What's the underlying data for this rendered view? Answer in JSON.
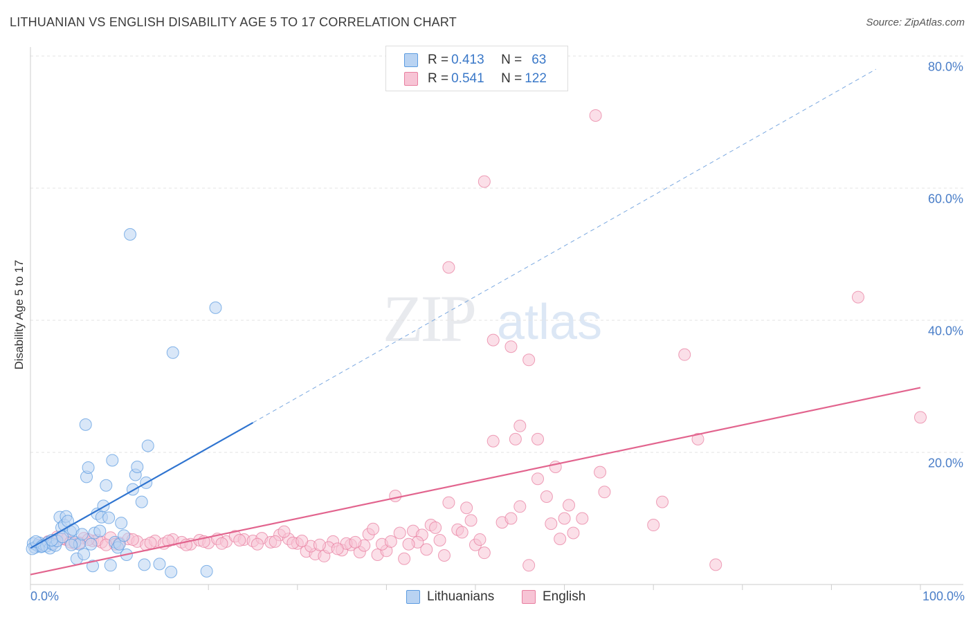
{
  "header": {
    "title": "LITHUANIAN VS ENGLISH DISABILITY AGE 5 TO 17 CORRELATION CHART",
    "source": "Source: ZipAtlas.com"
  },
  "watermark": {
    "zip": "ZIP",
    "atlas": "atlas"
  },
  "legend": {
    "rows": [
      {
        "r_label": "R = ",
        "r_value": "0.413",
        "n_label": "N = ",
        "n_value": "63",
        "color": "#5b9be0",
        "fill": "#b9d3f2"
      },
      {
        "r_label": "R = ",
        "r_value": "0.541",
        "n_label": "N = ",
        "n_value": "122",
        "color": "#e87fa0",
        "fill": "#f7c4d5"
      }
    ]
  },
  "bottom_legend": {
    "lithuanians": "Lithuanians",
    "english": "English"
  },
  "axis_text": {
    "ylabel": "Disability Age 5 to 17",
    "y_ticks": [
      "80.0%",
      "60.0%",
      "40.0%",
      "20.0%"
    ],
    "x_min": "0.0%",
    "x_max": "100.0%"
  },
  "chart_data": {
    "type": "scatter",
    "title": "LITHUANIAN VS ENGLISH DISABILITY AGE 5 TO 17 CORRELATION CHART",
    "xlabel": "",
    "ylabel": "Disability Age 5 to 17",
    "xlim": [
      0,
      100
    ],
    "ylim": [
      0,
      80
    ],
    "y_ticks": [
      20,
      40,
      60,
      80
    ],
    "grid": true,
    "legend_position": "top-center",
    "series": [
      {
        "name": "Lithuanians",
        "color": "#5b9be0",
        "fill": "#b9d3f2",
        "trend": {
          "x0": 0,
          "y0": 5.5,
          "x1": 25,
          "y1": 24.5,
          "dashed_to_x": 95,
          "dashed_to_y": 78
        },
        "points": [
          [
            0.3,
            6.2
          ],
          [
            0.5,
            5.6
          ],
          [
            0.8,
            5.9
          ],
          [
            1.0,
            6.3
          ],
          [
            1.2,
            5.7
          ],
          [
            1.5,
            6.0
          ],
          [
            1.8,
            5.8
          ],
          [
            2.0,
            6.4
          ],
          [
            2.2,
            5.5
          ],
          [
            2.5,
            6.1
          ],
          [
            2.8,
            5.9
          ],
          [
            3.0,
            6.6
          ],
          [
            3.3,
            10.2
          ],
          [
            3.5,
            8.6
          ],
          [
            3.8,
            9.0
          ],
          [
            4.0,
            10.3
          ],
          [
            4.2,
            9.6
          ],
          [
            4.5,
            8.0
          ],
          [
            4.8,
            8.3
          ],
          [
            5.0,
            6.4
          ],
          [
            5.2,
            3.9
          ],
          [
            5.5,
            6.1
          ],
          [
            5.8,
            7.6
          ],
          [
            6.0,
            4.6
          ],
          [
            6.2,
            24.2
          ],
          [
            6.3,
            16.3
          ],
          [
            6.5,
            17.7
          ],
          [
            6.8,
            6.1
          ],
          [
            7.0,
            2.8
          ],
          [
            7.2,
            7.8
          ],
          [
            7.5,
            10.7
          ],
          [
            7.8,
            8.1
          ],
          [
            8.0,
            10.2
          ],
          [
            8.2,
            11.9
          ],
          [
            8.5,
            15.0
          ],
          [
            8.8,
            10.1
          ],
          [
            9.0,
            2.9
          ],
          [
            9.2,
            18.8
          ],
          [
            9.5,
            6.4
          ],
          [
            9.8,
            5.6
          ],
          [
            10.0,
            6.1
          ],
          [
            10.2,
            9.3
          ],
          [
            10.5,
            7.4
          ],
          [
            10.8,
            4.5
          ],
          [
            11.2,
            53.0
          ],
          [
            11.5,
            14.4
          ],
          [
            11.8,
            16.6
          ],
          [
            12.0,
            17.8
          ],
          [
            12.5,
            12.5
          ],
          [
            12.8,
            3.0
          ],
          [
            13.0,
            15.4
          ],
          [
            13.2,
            21.0
          ],
          [
            14.5,
            3.1
          ],
          [
            15.8,
            1.9
          ],
          [
            16.0,
            35.1
          ],
          [
            19.8,
            2.0
          ],
          [
            20.8,
            41.9
          ],
          [
            0.2,
            5.4
          ],
          [
            0.6,
            6.5
          ],
          [
            1.3,
            5.8
          ],
          [
            2.4,
            6.7
          ],
          [
            3.6,
            7.2
          ],
          [
            4.6,
            6.0
          ]
        ]
      },
      {
        "name": "English",
        "color": "#e87fa0",
        "fill": "#f7c4d5",
        "trend": {
          "x0": 0,
          "y0": 1.5,
          "x1": 100,
          "y1": 29.8
        },
        "points": [
          [
            1.0,
            6.0
          ],
          [
            2.0,
            6.5
          ],
          [
            3.0,
            7.2
          ],
          [
            4.0,
            6.8
          ],
          [
            5.0,
            6.2
          ],
          [
            6.0,
            7.0
          ],
          [
            7.0,
            6.6
          ],
          [
            8.0,
            6.4
          ],
          [
            9.0,
            7.1
          ],
          [
            10.0,
            6.3
          ],
          [
            11.0,
            6.9
          ],
          [
            12.0,
            6.5
          ],
          [
            13.0,
            6.0
          ],
          [
            14.0,
            6.6
          ],
          [
            15.0,
            6.2
          ],
          [
            16.0,
            6.8
          ],
          [
            17.0,
            6.4
          ],
          [
            18.0,
            6.1
          ],
          [
            19.0,
            6.7
          ],
          [
            20.0,
            6.3
          ],
          [
            21.0,
            6.9
          ],
          [
            22.0,
            6.5
          ],
          [
            23.0,
            7.3
          ],
          [
            24.0,
            6.8
          ],
          [
            25.0,
            6.6
          ],
          [
            26.0,
            7.0
          ],
          [
            27.0,
            6.4
          ],
          [
            28.0,
            7.5
          ],
          [
            29.0,
            6.9
          ],
          [
            30.0,
            6.2
          ],
          [
            31.0,
            5.0
          ],
          [
            32.0,
            4.6
          ],
          [
            33.0,
            4.3
          ],
          [
            34.0,
            6.5
          ],
          [
            35.0,
            5.2
          ],
          [
            36.0,
            6.0
          ],
          [
            37.0,
            4.9
          ],
          [
            38.0,
            7.6
          ],
          [
            39.0,
            4.5
          ],
          [
            40.0,
            5.1
          ],
          [
            41.0,
            13.4
          ],
          [
            42.0,
            3.9
          ],
          [
            43.0,
            8.1
          ],
          [
            44.0,
            7.5
          ],
          [
            45.0,
            9.0
          ],
          [
            46.0,
            6.7
          ],
          [
            47.0,
            12.4
          ],
          [
            48.0,
            8.3
          ],
          [
            49.0,
            11.6
          ],
          [
            50.0,
            6.0
          ],
          [
            51.0,
            4.8
          ],
          [
            52.0,
            21.7
          ],
          [
            53.0,
            9.4
          ],
          [
            54.0,
            10.0
          ],
          [
            55.0,
            11.8
          ],
          [
            56.0,
            2.9
          ],
          [
            57.0,
            16.0
          ],
          [
            58.0,
            13.3
          ],
          [
            59.0,
            17.8
          ],
          [
            60.0,
            10.0
          ],
          [
            47.0,
            48.0
          ],
          [
            51.0,
            61.0
          ],
          [
            52.0,
            37.0
          ],
          [
            54.0,
            36.0
          ],
          [
            56.0,
            34.0
          ],
          [
            55.0,
            24.0
          ],
          [
            54.5,
            22.0
          ],
          [
            57.0,
            22.0
          ],
          [
            62.0,
            10.0
          ],
          [
            64.0,
            17.0
          ],
          [
            64.5,
            14.0
          ],
          [
            63.5,
            71.0
          ],
          [
            70.0,
            9.0
          ],
          [
            71.0,
            12.5
          ],
          [
            73.5,
            34.8
          ],
          [
            75.0,
            22.0
          ],
          [
            77.0,
            3.0
          ],
          [
            93.0,
            43.5
          ],
          [
            100.0,
            25.3
          ],
          [
            3.5,
            6.9
          ],
          [
            5.5,
            6.3
          ],
          [
            7.5,
            6.7
          ],
          [
            9.5,
            6.1
          ],
          [
            11.5,
            6.8
          ],
          [
            13.5,
            6.3
          ],
          [
            15.5,
            6.6
          ],
          [
            17.5,
            6.0
          ],
          [
            19.5,
            6.5
          ],
          [
            21.5,
            6.2
          ],
          [
            23.5,
            6.7
          ],
          [
            25.5,
            6.1
          ],
          [
            27.5,
            6.5
          ],
          [
            29.5,
            6.3
          ],
          [
            31.5,
            5.8
          ],
          [
            33.5,
            5.6
          ],
          [
            35.5,
            6.2
          ],
          [
            37.5,
            5.9
          ],
          [
            39.5,
            6.1
          ],
          [
            41.5,
            7.8
          ],
          [
            43.5,
            6.4
          ],
          [
            45.5,
            8.6
          ],
          [
            46.5,
            4.4
          ],
          [
            48.5,
            7.9
          ],
          [
            49.5,
            9.7
          ],
          [
            50.5,
            6.8
          ],
          [
            58.5,
            9.2
          ],
          [
            60.5,
            12.0
          ],
          [
            61.0,
            7.8
          ],
          [
            59.5,
            6.9
          ],
          [
            28.5,
            8.0
          ],
          [
            30.5,
            6.6
          ],
          [
            32.5,
            6.0
          ],
          [
            34.5,
            5.4
          ],
          [
            36.5,
            6.4
          ],
          [
            38.5,
            8.4
          ],
          [
            40.5,
            6.5
          ],
          [
            42.5,
            6.1
          ],
          [
            44.5,
            5.3
          ],
          [
            2.5,
            6.2
          ],
          [
            4.5,
            6.4
          ],
          [
            6.5,
            6.8
          ],
          [
            8.5,
            6.0
          ]
        ]
      }
    ]
  }
}
